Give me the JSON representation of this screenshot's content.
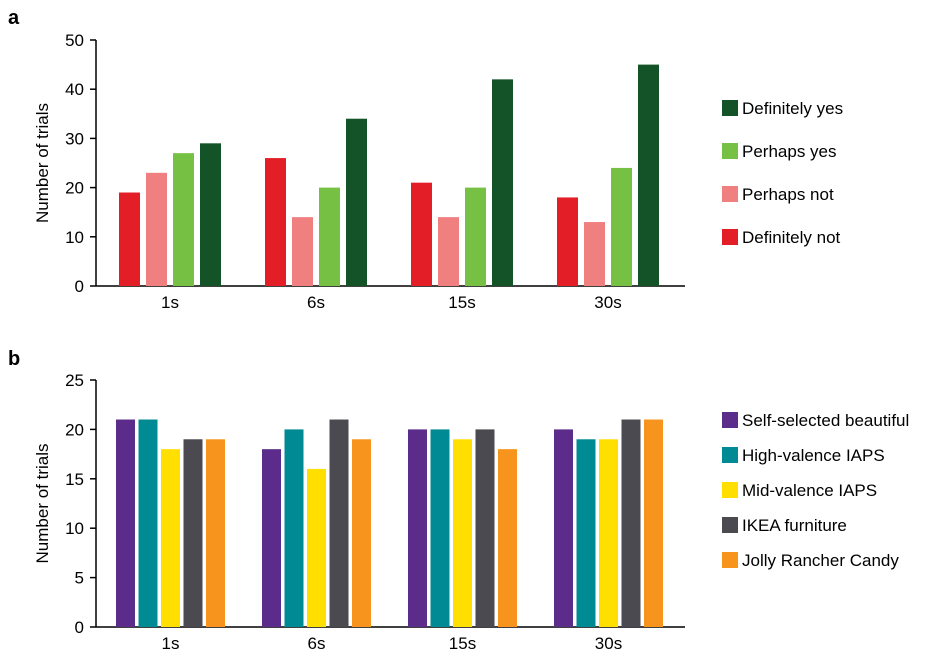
{
  "chart_data": [
    {
      "panel_label": "a",
      "type": "bar",
      "categories": [
        "1s",
        "6s",
        "15s",
        "30s"
      ],
      "ylabel": "Number of trials",
      "ylim": [
        0,
        50
      ],
      "yticks": [
        0,
        10,
        20,
        30,
        40,
        50
      ],
      "legend_position": "right",
      "series": [
        {
          "name": "Definitely not",
          "color": "#e41e26",
          "values": [
            19,
            26,
            21,
            18
          ]
        },
        {
          "name": "Perhaps not",
          "color": "#f08080",
          "values": [
            23,
            14,
            14,
            13
          ]
        },
        {
          "name": "Perhaps yes",
          "color": "#76c043",
          "values": [
            27,
            20,
            20,
            24
          ]
        },
        {
          "name": "Definitely yes",
          "color": "#135327",
          "values": [
            29,
            34,
            42,
            45
          ]
        }
      ],
      "legend_order": [
        "Definitely yes",
        "Perhaps yes",
        "Perhaps not",
        "Definitely not"
      ]
    },
    {
      "panel_label": "b",
      "type": "bar",
      "categories": [
        "1s",
        "6s",
        "15s",
        "30s"
      ],
      "ylabel": "Number of trials",
      "ylim": [
        0,
        25
      ],
      "yticks": [
        0,
        5,
        10,
        15,
        20,
        25
      ],
      "legend_position": "right",
      "series": [
        {
          "name": "Self-selected beautiful",
          "color": "#5b2c8a",
          "values": [
            21,
            18,
            20,
            20
          ]
        },
        {
          "name": "High-valence IAPS",
          "color": "#008b94",
          "values": [
            21,
            20,
            20,
            19
          ]
        },
        {
          "name": "Mid-valence IAPS",
          "color": "#ffdf00",
          "values": [
            18,
            16,
            19,
            19
          ]
        },
        {
          "name": "IKEA furniture",
          "color": "#4a4a50",
          "values": [
            19,
            21,
            20,
            21
          ]
        },
        {
          "name": "Jolly Rancher Candy",
          "color": "#f7941d",
          "values": [
            19,
            19,
            18,
            21
          ]
        }
      ],
      "legend_order": [
        "Self-selected beautiful",
        "High-valence IAPS",
        "Mid-valence IAPS",
        "IKEA furniture",
        "Jolly Rancher Candy"
      ]
    }
  ]
}
